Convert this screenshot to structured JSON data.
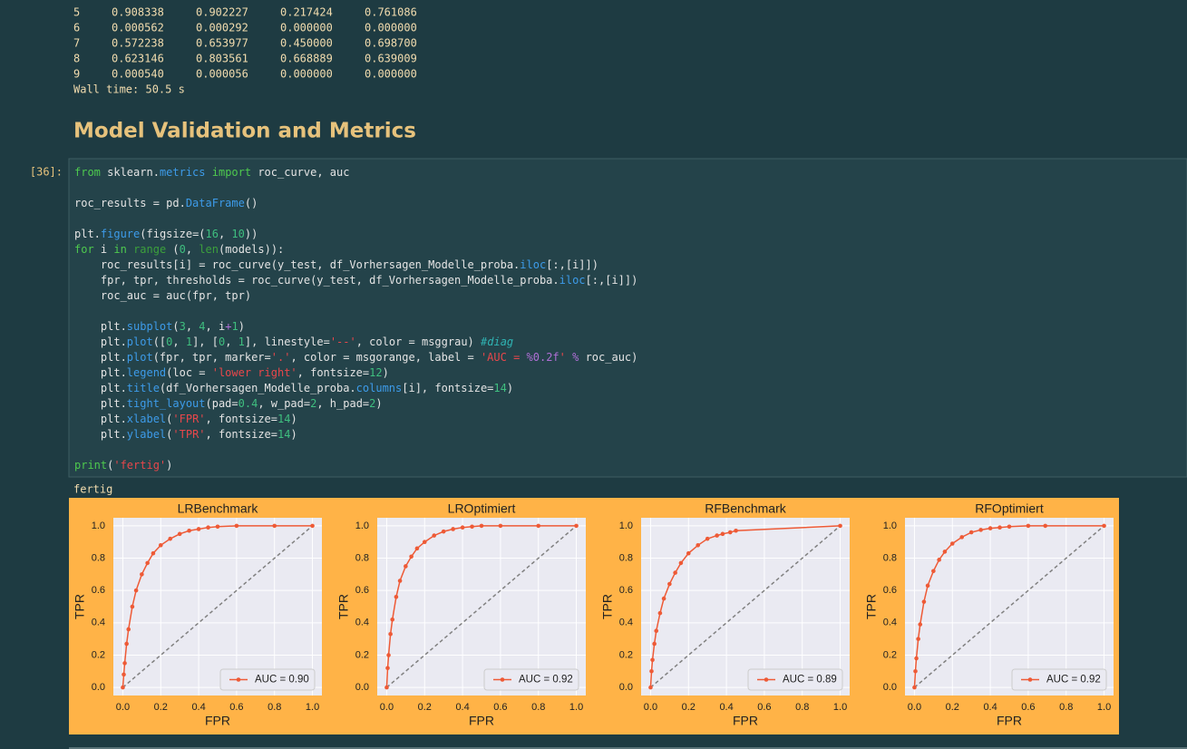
{
  "output_table": {
    "rows": [
      [
        "5",
        "0.908338",
        "0.902227",
        "0.217424",
        "0.761086"
      ],
      [
        "6",
        "0.000562",
        "0.000292",
        "0.000000",
        "0.000000"
      ],
      [
        "7",
        "0.572238",
        "0.653977",
        "0.450000",
        "0.698700"
      ],
      [
        "8",
        "0.623146",
        "0.803561",
        "0.668889",
        "0.639009"
      ],
      [
        "9",
        "0.000540",
        "0.000056",
        "0.000000",
        "0.000000"
      ]
    ]
  },
  "wall_time": "Wall time: 50.5 s",
  "heading": "Model Validation and Metrics",
  "cell": {
    "prompt": "[36]:",
    "lines": [
      [
        {
          "text": "from",
          "color": "#4ec94e"
        },
        " sklearn.",
        {
          "text": "metrics",
          "color": "#3d9be9"
        },
        " ",
        {
          "text": "import",
          "color": "#4ec94e"
        },
        " roc_curve, auc"
      ],
      [],
      [
        "roc_results = pd.",
        {
          "text": "DataFrame",
          "color": "#3d9be9"
        },
        "()"
      ],
      [],
      [
        "plt.",
        {
          "text": "figure",
          "color": "#3d9be9"
        },
        "(figsize=(",
        {
          "text": "16",
          "color": "#3fbf7f"
        },
        ", ",
        {
          "text": "10",
          "color": "#3fbf7f"
        },
        "))"
      ],
      [
        {
          "text": "for",
          "color": "#4ec94e"
        },
        " i ",
        {
          "text": "in",
          "color": "#4ec94e"
        },
        " ",
        {
          "text": "range",
          "color": "#3ca03c"
        },
        " (",
        {
          "text": "0",
          "color": "#3fbf7f"
        },
        ", ",
        {
          "text": "len",
          "color": "#3ca03c"
        },
        "(models)):"
      ],
      [
        "    roc_results[i] = roc_curve(y_test, df_Vorhersagen_Modelle_proba.",
        {
          "text": "iloc",
          "color": "#3d9be9"
        },
        "[:,[i]])"
      ],
      [
        "    fpr, tpr, thresholds = roc_curve(y_test, df_Vorhersagen_Modelle_proba.",
        {
          "text": "iloc",
          "color": "#3d9be9"
        },
        "[:,[i]])"
      ],
      [
        "    roc_auc = auc(fpr, tpr)"
      ],
      [],
      [
        "    plt.",
        {
          "text": "subplot",
          "color": "#3d9be9"
        },
        "(",
        {
          "text": "3",
          "color": "#3fbf7f"
        },
        ", ",
        {
          "text": "4",
          "color": "#3fbf7f"
        },
        ", i",
        {
          "text": "+",
          "color": "#b06fd6"
        },
        {
          "text": "1",
          "color": "#3fbf7f"
        },
        ")"
      ],
      [
        "    plt.",
        {
          "text": "plot",
          "color": "#3d9be9"
        },
        "([",
        {
          "text": "0",
          "color": "#3fbf7f"
        },
        ", ",
        {
          "text": "1",
          "color": "#3fbf7f"
        },
        "], [",
        {
          "text": "0",
          "color": "#3fbf7f"
        },
        ", ",
        {
          "text": "1",
          "color": "#3fbf7f"
        },
        "], linestyle=",
        {
          "text": "'--'",
          "color": "#e8474b"
        },
        ", color = msggrau) ",
        {
          "text": "#diag",
          "color": "#2fb3b3",
          "italic": true
        }
      ],
      [
        "    plt.",
        {
          "text": "plot",
          "color": "#3d9be9"
        },
        "(fpr, tpr, marker=",
        {
          "text": "'.'",
          "color": "#e8474b"
        },
        ", color = msgorange, label = ",
        {
          "text": "'AUC = ",
          "color": "#e8474b"
        },
        {
          "text": "%0.2f",
          "color": "#b06fd6"
        },
        {
          "text": "'",
          "color": "#e8474b"
        },
        " ",
        {
          "text": "%",
          "color": "#b06fd6"
        },
        " roc_auc)"
      ],
      [
        "    plt.",
        {
          "text": "legend",
          "color": "#3d9be9"
        },
        "(loc = ",
        {
          "text": "'lower right'",
          "color": "#e8474b"
        },
        ", fontsize=",
        {
          "text": "12",
          "color": "#3fbf7f"
        },
        ")"
      ],
      [
        "    plt.",
        {
          "text": "title",
          "color": "#3d9be9"
        },
        "(df_Vorhersagen_Modelle_proba.",
        {
          "text": "columns",
          "color": "#3d9be9"
        },
        "[i], fontsize=",
        {
          "text": "14",
          "color": "#3fbf7f"
        },
        ")"
      ],
      [
        "    plt.",
        {
          "text": "tight_layout",
          "color": "#3d9be9"
        },
        "(pad=",
        {
          "text": "0.4",
          "color": "#3fbf7f"
        },
        ", w_pad=",
        {
          "text": "2",
          "color": "#3fbf7f"
        },
        ", h_pad=",
        {
          "text": "2",
          "color": "#3fbf7f"
        },
        ")"
      ],
      [
        "    plt.",
        {
          "text": "xlabel",
          "color": "#3d9be9"
        },
        "(",
        {
          "text": "'FPR'",
          "color": "#e8474b"
        },
        ", fontsize=",
        {
          "text": "14",
          "color": "#3fbf7f"
        },
        ")"
      ],
      [
        "    plt.",
        {
          "text": "ylabel",
          "color": "#3d9be9"
        },
        "(",
        {
          "text": "'TPR'",
          "color": "#e8474b"
        },
        ", fontsize=",
        {
          "text": "14",
          "color": "#3fbf7f"
        },
        ")"
      ],
      [],
      [
        {
          "text": "print",
          "color": "#4ec94e"
        },
        "(",
        {
          "text": "'fertig'",
          "color": "#e8474b"
        },
        ")"
      ]
    ]
  },
  "output_text": "fertig",
  "chart_data": [
    {
      "type": "line",
      "title": "LRBenchmark",
      "xlabel": "FPR",
      "ylabel": "TPR",
      "xlim": [
        -0.05,
        1.05
      ],
      "ylim": [
        -0.05,
        1.05
      ],
      "grid": true,
      "legend": "lower right",
      "xticks": [
        {
          "value": 0,
          "label": "0.0"
        },
        0.2,
        0.4,
        0.6,
        0.8,
        {
          "value": 1,
          "label": "1.0"
        }
      ],
      "yticks": [
        {
          "value": 0,
          "label": "0.0"
        },
        0.2,
        0.4,
        0.6,
        0.8,
        {
          "value": 1,
          "label": "1.0"
        }
      ],
      "series": [
        {
          "color": "#808080",
          "linestyle": "dashed",
          "x": [
            0,
            1
          ],
          "values": [
            0,
            1
          ]
        },
        {
          "name": "AUC = 0.90",
          "color": "#ee5a36",
          "marker": ".",
          "x": [
            0,
            0.005,
            0.01,
            0.02,
            0.03,
            0.05,
            0.07,
            0.1,
            0.13,
            0.16,
            0.2,
            0.25,
            0.3,
            0.35,
            0.4,
            0.45,
            0.5,
            0.6,
            0.8,
            1.0
          ],
          "values": [
            0,
            0.08,
            0.15,
            0.27,
            0.36,
            0.5,
            0.6,
            0.7,
            0.77,
            0.83,
            0.88,
            0.92,
            0.95,
            0.97,
            0.98,
            0.99,
            0.995,
            1.0,
            1.0,
            1.0
          ]
        }
      ]
    },
    {
      "type": "line",
      "title": "LROptimiert",
      "xlabel": "FPR",
      "ylabel": "TPR",
      "xlim": [
        -0.05,
        1.05
      ],
      "ylim": [
        -0.05,
        1.05
      ],
      "grid": true,
      "legend": "lower right",
      "xticks": [
        {
          "value": 0,
          "label": "0.0"
        },
        0.2,
        0.4,
        0.6,
        0.8,
        {
          "value": 1,
          "label": "1.0"
        }
      ],
      "yticks": [
        {
          "value": 0,
          "label": "0.0"
        },
        0.2,
        0.4,
        0.6,
        0.8,
        {
          "value": 1,
          "label": "1.0"
        }
      ],
      "series": [
        {
          "color": "#808080",
          "linestyle": "dashed",
          "x": [
            0,
            1
          ],
          "values": [
            0,
            1
          ]
        },
        {
          "name": "AUC = 0.92",
          "color": "#ee5a36",
          "marker": ".",
          "x": [
            0,
            0.005,
            0.01,
            0.02,
            0.03,
            0.05,
            0.07,
            0.1,
            0.13,
            0.16,
            0.2,
            0.25,
            0.3,
            0.35,
            0.4,
            0.45,
            0.5,
            0.6,
            0.8,
            1.0
          ],
          "values": [
            0,
            0.12,
            0.2,
            0.33,
            0.42,
            0.56,
            0.66,
            0.75,
            0.81,
            0.86,
            0.9,
            0.94,
            0.965,
            0.98,
            0.99,
            0.995,
            1.0,
            1.0,
            1.0,
            1.0
          ]
        }
      ]
    },
    {
      "type": "line",
      "title": "RFBenchmark",
      "xlabel": "FPR",
      "ylabel": "TPR",
      "xlim": [
        -0.05,
        1.05
      ],
      "ylim": [
        -0.05,
        1.05
      ],
      "grid": true,
      "legend": "lower right",
      "xticks": [
        {
          "value": 0,
          "label": "0.0"
        },
        0.2,
        0.4,
        0.6,
        0.8,
        {
          "value": 1,
          "label": "1.0"
        }
      ],
      "yticks": [
        {
          "value": 0,
          "label": "0.0"
        },
        0.2,
        0.4,
        0.6,
        0.8,
        {
          "value": 1,
          "label": "1.0"
        }
      ],
      "series": [
        {
          "color": "#808080",
          "linestyle": "dashed",
          "x": [
            0,
            1
          ],
          "values": [
            0,
            1
          ]
        },
        {
          "name": "AUC = 0.89",
          "color": "#ee5a36",
          "marker": ".",
          "x": [
            0,
            0.005,
            0.01,
            0.02,
            0.03,
            0.05,
            0.07,
            0.1,
            0.13,
            0.16,
            0.2,
            0.25,
            0.3,
            0.35,
            0.38,
            0.42,
            0.45,
            1.0
          ],
          "values": [
            0,
            0.1,
            0.17,
            0.27,
            0.35,
            0.46,
            0.55,
            0.64,
            0.71,
            0.77,
            0.83,
            0.88,
            0.92,
            0.94,
            0.95,
            0.96,
            0.97,
            1.0
          ]
        }
      ]
    },
    {
      "type": "line",
      "title": "RFOptimiert",
      "xlabel": "FPR",
      "ylabel": "TPR",
      "xlim": [
        -0.05,
        1.05
      ],
      "ylim": [
        -0.05,
        1.05
      ],
      "grid": true,
      "legend": "lower right",
      "xticks": [
        {
          "value": 0,
          "label": "0.0"
        },
        0.2,
        0.4,
        0.6,
        0.8,
        {
          "value": 1,
          "label": "1.0"
        }
      ],
      "yticks": [
        {
          "value": 0,
          "label": "0.0"
        },
        0.2,
        0.4,
        0.6,
        0.8,
        {
          "value": 1,
          "label": "1.0"
        }
      ],
      "series": [
        {
          "color": "#808080",
          "linestyle": "dashed",
          "x": [
            0,
            1
          ],
          "values": [
            0,
            1
          ]
        },
        {
          "name": "AUC = 0.92",
          "color": "#ee5a36",
          "marker": ".",
          "x": [
            0,
            0.005,
            0.01,
            0.02,
            0.03,
            0.05,
            0.07,
            0.1,
            0.13,
            0.16,
            0.2,
            0.25,
            0.3,
            0.35,
            0.4,
            0.45,
            0.5,
            0.6,
            0.69,
            1.0
          ],
          "values": [
            0,
            0.1,
            0.18,
            0.3,
            0.39,
            0.53,
            0.63,
            0.72,
            0.79,
            0.84,
            0.89,
            0.93,
            0.96,
            0.975,
            0.985,
            0.99,
            0.995,
            1.0,
            1.0,
            1.0
          ]
        }
      ]
    }
  ]
}
